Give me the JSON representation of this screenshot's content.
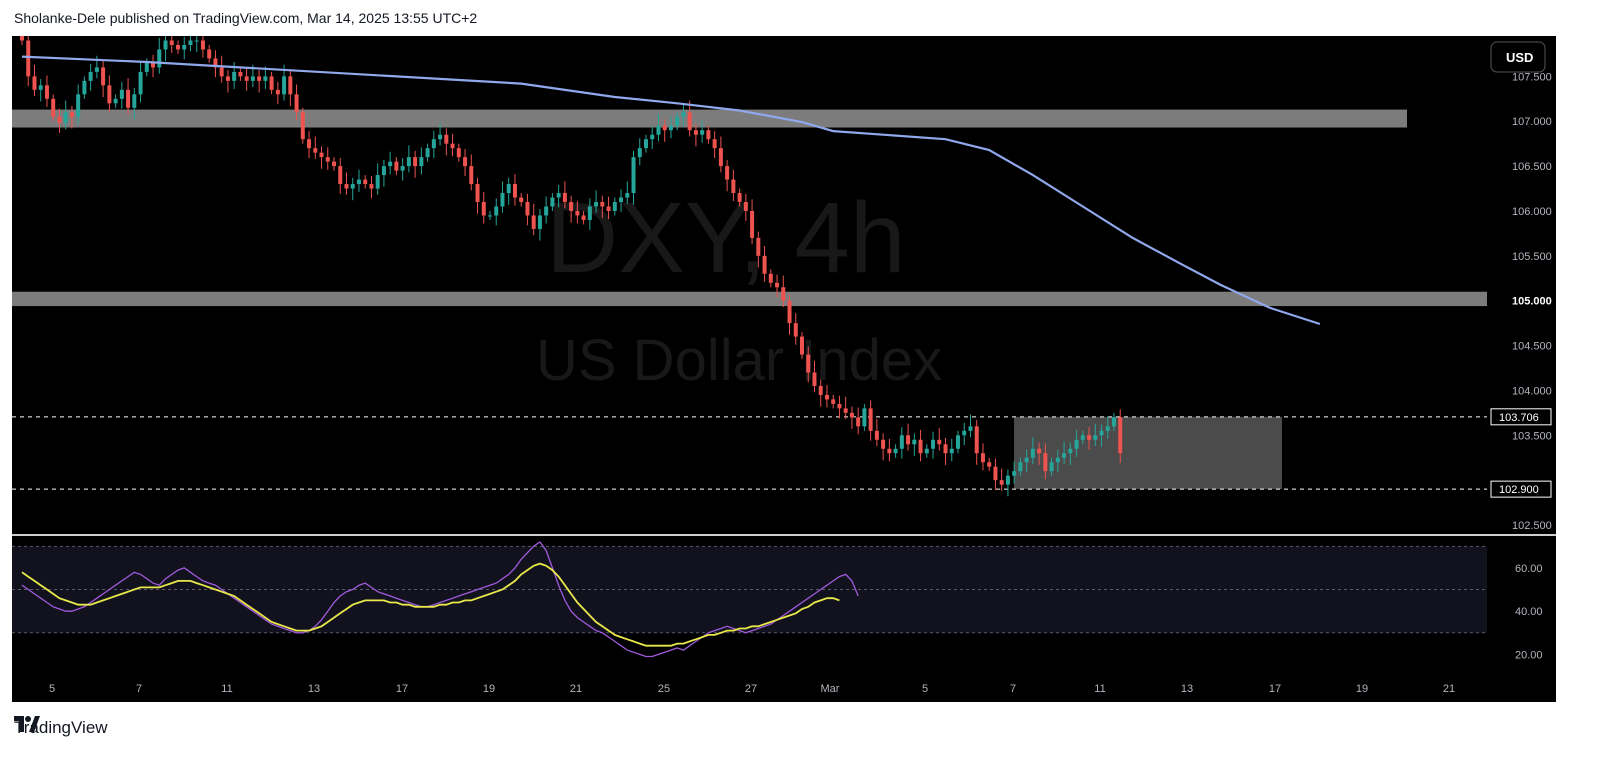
{
  "header": {
    "published_text": "Sholanke-Dele published on TradingView.com, Mar 14, 2025 13:55 UTC+2"
  },
  "watermark": {
    "symbol": "DXY, 4h",
    "name": "US Dollar Index"
  },
  "currency_button": {
    "label": "USD"
  },
  "footer": {
    "brand": "TradingView",
    "logo_icon": "tradingview-logo-icon"
  },
  "chart_data": [
    {
      "type": "candlestick",
      "symbol": "DXY",
      "interval": "4h",
      "currency": "USD",
      "ylim": [
        102.4,
        107.95
      ],
      "y_ticks": [
        "107.500",
        "107.000",
        "106.500",
        "106.000",
        "105.500",
        "105.000",
        "104.500",
        "104.000",
        "103.500",
        "102.500"
      ],
      "x_ticks": [
        "5",
        "7",
        "11",
        "13",
        "17",
        "19",
        "21",
        "25",
        "27",
        "Mar",
        "5",
        "7",
        "11",
        "13",
        "17",
        "19",
        "21"
      ],
      "price_labels": [
        {
          "label": "103.706",
          "value": 103.706
        },
        {
          "label": "102.900",
          "value": 102.9
        }
      ],
      "horizontal_lines": [
        103.706,
        102.9
      ],
      "zones": [
        {
          "from": 106.93,
          "to": 107.13
        },
        {
          "from": 104.94,
          "to": 105.1
        }
      ],
      "consolidation_box": {
        "from": 102.9,
        "to": 103.706
      },
      "closes": [
        107.9,
        107.5,
        107.35,
        107.4,
        107.25,
        107.05,
        106.98,
        107.1,
        107.05,
        107.3,
        107.45,
        107.55,
        107.6,
        107.4,
        107.2,
        107.25,
        107.35,
        107.15,
        107.3,
        107.55,
        107.65,
        107.6,
        107.8,
        107.9,
        107.85,
        107.8,
        107.85,
        107.9,
        107.9,
        107.8,
        107.7,
        107.6,
        107.5,
        107.45,
        107.55,
        107.5,
        107.45,
        107.5,
        107.45,
        107.5,
        107.35,
        107.3,
        107.5,
        107.3,
        107.1,
        106.8,
        106.7,
        106.65,
        106.6,
        106.55,
        106.5,
        106.3,
        106.25,
        106.3,
        106.35,
        106.3,
        106.25,
        106.4,
        106.5,
        106.55,
        106.45,
        106.5,
        106.6,
        106.5,
        106.6,
        106.7,
        106.8,
        106.85,
        106.75,
        106.7,
        106.6,
        106.5,
        106.3,
        106.1,
        105.95,
        105.95,
        106.05,
        106.2,
        106.3,
        106.15,
        106.1,
        105.95,
        105.8,
        105.95,
        106.05,
        106.15,
        106.2,
        106.1,
        106.0,
        105.95,
        105.9,
        106.05,
        106.1,
        106.05,
        106.0,
        106.1,
        106.15,
        106.2,
        106.6,
        106.7,
        106.8,
        106.85,
        106.95,
        106.9,
        106.95,
        107.05,
        107.1,
        106.9,
        106.85,
        106.9,
        106.8,
        106.7,
        106.5,
        106.35,
        106.2,
        106.1,
        106.0,
        105.7,
        105.5,
        105.3,
        105.2,
        105.15,
        105.0,
        104.75,
        104.6,
        104.4,
        104.2,
        104.05,
        103.95,
        103.9,
        103.85,
        103.8,
        103.75,
        103.7,
        103.6,
        103.8,
        103.55,
        103.45,
        103.35,
        103.3,
        103.35,
        103.5,
        103.4,
        103.45,
        103.3,
        103.35,
        103.45,
        103.4,
        103.3,
        103.35,
        103.5,
        103.55,
        103.6,
        103.3,
        103.2,
        103.15,
        103.0,
        102.95,
        103.05,
        103.1,
        103.2,
        103.25,
        103.35,
        103.3,
        103.1,
        103.2,
        103.25,
        103.3,
        103.35,
        103.45,
        103.5,
        103.45,
        103.5,
        103.55,
        103.6,
        103.7,
        103.3
      ],
      "moving_average": {
        "color": "#90a9ec",
        "points": [
          [
            0,
            107.72
          ],
          [
            20,
            107.66
          ],
          [
            40,
            107.58
          ],
          [
            60,
            107.5
          ],
          [
            80,
            107.42
          ],
          [
            95,
            107.27
          ],
          [
            105,
            107.2
          ],
          [
            115,
            107.12
          ],
          [
            125,
            106.99
          ],
          [
            130,
            106.89
          ],
          [
            138,
            106.85
          ],
          [
            148,
            106.8
          ],
          [
            155,
            106.68
          ],
          [
            162,
            106.4
          ],
          [
            170,
            106.05
          ],
          [
            178,
            105.7
          ],
          [
            186,
            105.4
          ],
          [
            192,
            105.18
          ],
          [
            200,
            104.92
          ],
          [
            208,
            104.74
          ]
        ]
      }
    },
    {
      "type": "line",
      "indicator": "RSI",
      "ylim": [
        10,
        72
      ],
      "y_ticks": [
        "60.00",
        "40.00",
        "20.00"
      ],
      "band": [
        30,
        70
      ],
      "midline": 50,
      "series": [
        {
          "color": "#a05adc",
          "values": [
            52,
            50,
            48,
            46,
            44,
            42,
            41,
            40,
            40,
            41,
            42,
            44,
            46,
            48,
            50,
            52,
            54,
            56,
            58,
            57,
            55,
            53,
            52,
            55,
            57,
            59,
            60,
            58,
            56,
            54,
            53,
            52,
            50,
            48,
            46,
            44,
            42,
            40,
            38,
            36,
            34,
            33,
            32,
            31,
            30,
            30,
            31,
            33,
            36,
            40,
            44,
            47,
            49,
            50,
            52,
            53,
            51,
            49,
            48,
            47,
            46,
            45,
            44,
            43,
            42,
            42,
            43,
            44,
            45,
            46,
            47,
            48,
            49,
            50,
            51,
            52,
            53,
            55,
            57,
            60,
            64,
            67,
            70,
            72,
            68,
            60,
            52,
            45,
            40,
            37,
            35,
            33,
            31,
            30,
            28,
            26,
            24,
            22,
            21,
            20,
            19,
            19,
            20,
            21,
            22,
            23,
            22,
            24,
            26,
            28,
            30,
            31,
            32,
            33,
            32,
            31,
            30,
            31,
            32,
            33,
            34,
            36,
            38,
            40,
            42,
            44,
            46,
            48,
            50,
            52,
            54,
            56,
            57,
            54,
            47
          ]
        },
        {
          "color": "#e8e84a",
          "values": [
            58,
            56,
            54,
            52,
            50,
            48,
            46,
            45,
            44,
            43,
            43,
            43,
            44,
            45,
            46,
            47,
            48,
            49,
            50,
            51,
            51,
            51,
            51,
            52,
            53,
            54,
            54,
            54,
            53,
            52,
            51,
            50,
            49,
            48,
            47,
            45,
            43,
            41,
            39,
            37,
            35,
            34,
            33,
            32,
            31,
            31,
            31,
            32,
            33,
            35,
            37,
            39,
            41,
            43,
            44,
            45,
            45,
            45,
            45,
            44,
            44,
            43,
            43,
            42,
            42,
            42,
            42,
            43,
            43,
            44,
            44,
            45,
            45,
            46,
            47,
            48,
            49,
            50,
            52,
            54,
            57,
            59,
            61,
            62,
            61,
            59,
            56,
            52,
            48,
            44,
            41,
            38,
            35,
            33,
            31,
            29,
            28,
            27,
            26,
            25,
            24,
            24,
            24,
            24,
            24,
            25,
            25,
            26,
            27,
            28,
            29,
            29,
            30,
            31,
            31,
            32,
            32,
            33,
            33,
            34,
            35,
            36,
            37,
            38,
            39,
            41,
            42,
            44,
            45,
            46,
            46,
            45
          ]
        }
      ]
    }
  ]
}
